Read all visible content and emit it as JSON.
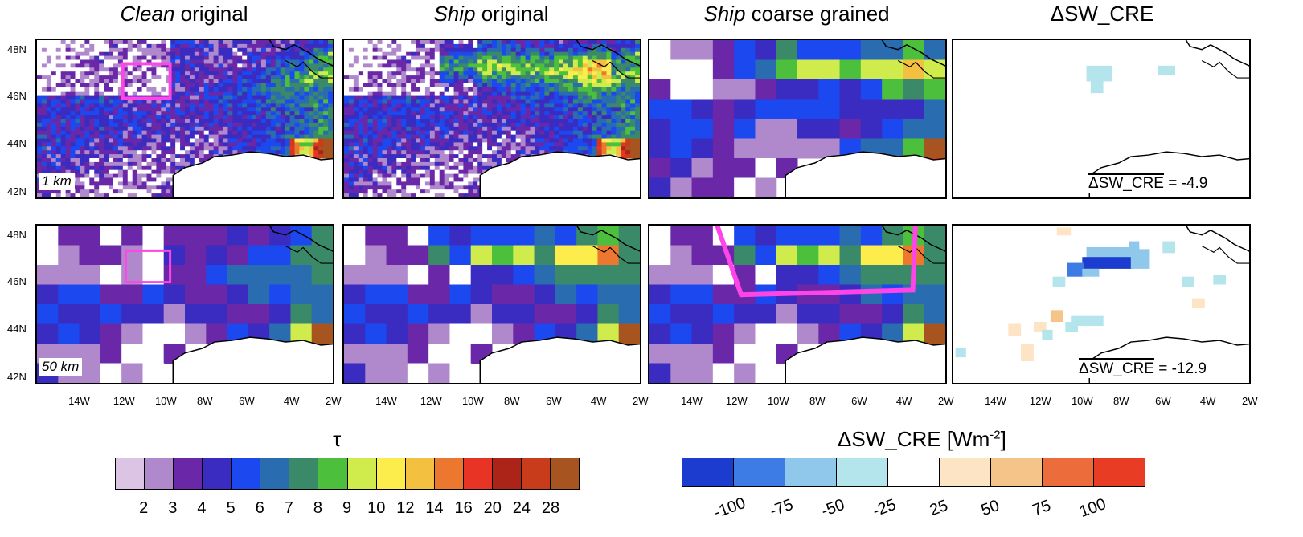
{
  "titles": [
    {
      "italic": "Clean",
      "rest": " original"
    },
    {
      "italic": "Ship",
      "rest": " original"
    },
    {
      "italic": "Ship",
      "rest": " coarse grained"
    },
    {
      "italic": "",
      "rest": "ΔSW_CRE"
    }
  ],
  "row_labels": [
    "1 km",
    "50 km"
  ],
  "lat_ticks": [
    "48N",
    "46N",
    "44N",
    "42N"
  ],
  "lon_ticks": [
    "14W",
    "12W",
    "10W",
    "8W",
    "6W",
    "4W",
    "2W"
  ],
  "mean_labels": {
    "symbol": "ΔSW_CRE",
    "top": " = -4.9",
    "bottom": " = -12.9"
  },
  "tau_colorbar": {
    "title": "τ",
    "labels": [
      "2",
      "3",
      "4",
      "5",
      "6",
      "7",
      "8",
      "9",
      "10",
      "12",
      "14",
      "16",
      "20",
      "24",
      "28"
    ],
    "colors": [
      "#dcc4e4",
      "#b088cc",
      "#6a28a8",
      "#3a2cc0",
      "#1c48f0",
      "#2a6cb0",
      "#3a8a6a",
      "#4cc03c",
      "#d0ec4c",
      "#fcec4c",
      "#f4c040",
      "#ec7830",
      "#e83424",
      "#ac2418",
      "#c83c1c",
      "#a85420"
    ]
  },
  "cre_colorbar": {
    "title": "ΔSW_CRE [Wm",
    "title_sup": "-2",
    "title_end": "]",
    "labels": [
      "-100",
      "-75",
      "-50",
      "-25",
      "25",
      "50",
      "75",
      "100"
    ],
    "colors": [
      "#1c3cd0",
      "#3c7ce4",
      "#90c8ec",
      "#b4e4ec",
      "#ffffff",
      "#fce4c4",
      "#f4c488",
      "#ec6c3c",
      "#e83c24"
    ]
  },
  "colors": {
    "highlight_box": "#ff44e8",
    "coast": "#000000"
  }
}
